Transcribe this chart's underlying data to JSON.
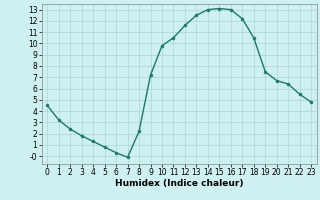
{
  "x": [
    0,
    1,
    2,
    3,
    4,
    5,
    6,
    7,
    8,
    9,
    10,
    11,
    12,
    13,
    14,
    15,
    16,
    17,
    18,
    19,
    20,
    21,
    22,
    23
  ],
  "y": [
    4.5,
    3.2,
    2.4,
    1.8,
    1.3,
    0.8,
    0.3,
    -0.1,
    2.2,
    7.2,
    9.8,
    10.5,
    11.6,
    12.5,
    13.0,
    13.1,
    13.0,
    12.2,
    10.5,
    7.5,
    6.7,
    6.4,
    5.5,
    4.8
  ],
  "line_color": "#1a7a6a",
  "marker": "o",
  "marker_size": 2.0,
  "bg_color": "#cff0f0",
  "grid_color": "#aed4d4",
  "xlabel": "Humidex (Indice chaleur)",
  "xlim": [
    -0.5,
    23.5
  ],
  "ylim": [
    -0.7,
    13.5
  ],
  "yticks": [
    0,
    1,
    2,
    3,
    4,
    5,
    6,
    7,
    8,
    9,
    10,
    11,
    12,
    13
  ],
  "ytick_labels": [
    "-0",
    "1",
    "2",
    "3",
    "4",
    "5",
    "6",
    "7",
    "8",
    "9",
    "10",
    "11",
    "12",
    "13"
  ],
  "xticks": [
    0,
    1,
    2,
    3,
    4,
    5,
    6,
    7,
    8,
    9,
    10,
    11,
    12,
    13,
    14,
    15,
    16,
    17,
    18,
    19,
    20,
    21,
    22,
    23
  ],
  "xlabel_fontsize": 6.5,
  "tick_fontsize": 5.5,
  "linewidth": 1.0
}
